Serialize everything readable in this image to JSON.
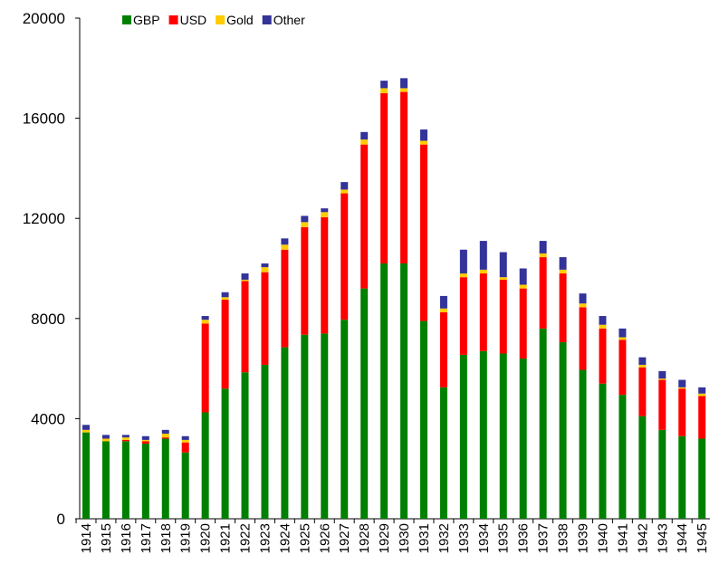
{
  "chart_data": {
    "type": "bar",
    "stacked": true,
    "categories": [
      "1914",
      "1915",
      "1916",
      "1917",
      "1918",
      "1919",
      "1920",
      "1921",
      "1922",
      "1923",
      "1924",
      "1925",
      "1926",
      "1927",
      "1928",
      "1929",
      "1930",
      "1931",
      "1932",
      "1933",
      "1934",
      "1935",
      "1936",
      "1937",
      "1938",
      "1939",
      "1940",
      "1941",
      "1942",
      "1943",
      "1944",
      "1945"
    ],
    "series": [
      {
        "name": "GBP",
        "color": "#008000",
        "values": [
          3450,
          3100,
          3100,
          3000,
          3200,
          2650,
          4250,
          5200,
          5850,
          6150,
          6850,
          7350,
          7400,
          7950,
          9200,
          10200,
          10200,
          7900,
          5250,
          6550,
          6700,
          6600,
          6400,
          7600,
          7050,
          5950,
          5400,
          4950,
          4100,
          3550,
          3300,
          3200
        ]
      },
      {
        "name": "USD",
        "color": "#ff0000",
        "values": [
          0,
          0,
          50,
          100,
          50,
          400,
          3550,
          3550,
          3650,
          3700,
          3900,
          4300,
          4650,
          5050,
          5750,
          6800,
          6850,
          7050,
          3000,
          3100,
          3100,
          2950,
          2800,
          2850,
          2750,
          2500,
          2200,
          2200,
          1950,
          2000,
          1900,
          1700
        ]
      },
      {
        "name": "Gold",
        "color": "#ffcc00",
        "values": [
          100,
          100,
          100,
          50,
          150,
          100,
          150,
          100,
          50,
          200,
          200,
          200,
          200,
          150,
          200,
          200,
          150,
          150,
          150,
          150,
          150,
          100,
          150,
          150,
          150,
          150,
          150,
          100,
          100,
          50,
          50,
          100
        ]
      },
      {
        "name": "Other",
        "color": "#333399",
        "values": [
          200,
          150,
          100,
          150,
          150,
          150,
          150,
          200,
          250,
          150,
          250,
          250,
          150,
          300,
          300,
          300,
          400,
          450,
          500,
          950,
          1150,
          1000,
          650,
          500,
          500,
          400,
          350,
          350,
          300,
          300,
          300,
          250
        ]
      }
    ],
    "ylim": [
      0,
      20000
    ],
    "yticks": [
      0,
      4000,
      8000,
      12000,
      16000,
      20000
    ],
    "legend": "top"
  }
}
